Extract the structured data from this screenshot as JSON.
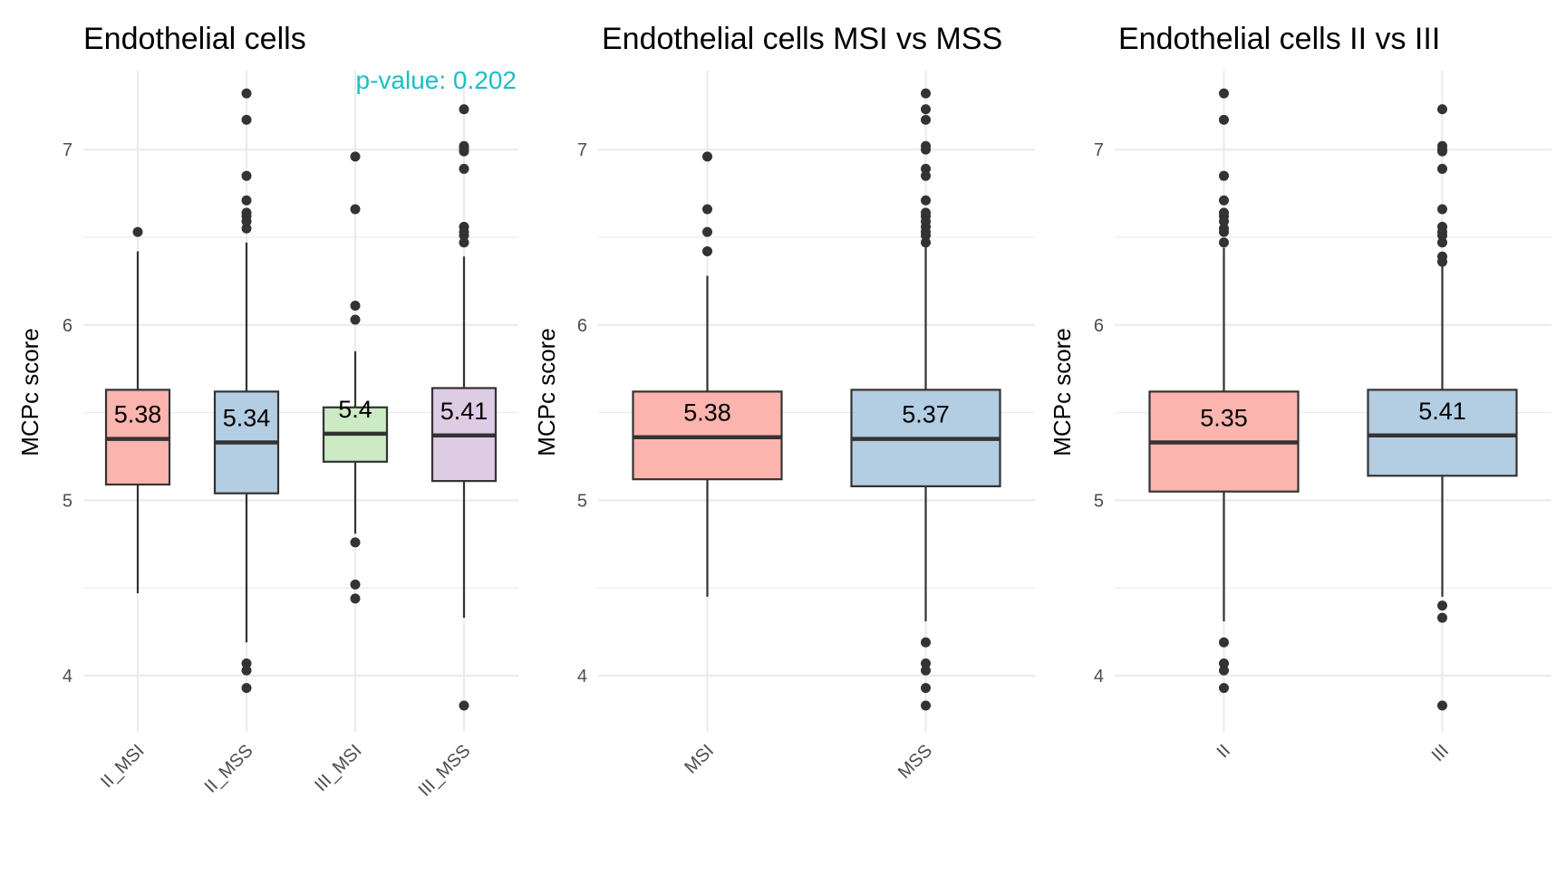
{
  "chart_data": [
    {
      "type": "box",
      "title": "Endothelial cells",
      "ylabel": "MCPc score",
      "ylim": [
        3.68,
        7.45
      ],
      "yticks": [
        4,
        5,
        6,
        7
      ],
      "grid": true,
      "annotation": "p-value: 0.202",
      "annotation_color": "#1CBEC6",
      "categories": [
        "II_MSI",
        "II_MSS",
        "III_MSI",
        "III_MSS"
      ],
      "boxes": [
        {
          "category": "II_MSI",
          "q1": 5.09,
          "median": 5.35,
          "q3": 5.63,
          "whisker_low": 4.47,
          "whisker_high": 6.42,
          "label": "5.38",
          "color": "#FBB4AE",
          "outliers": [
            6.53
          ]
        },
        {
          "category": "II_MSS",
          "q1": 5.04,
          "median": 5.33,
          "q3": 5.62,
          "whisker_low": 4.19,
          "whisker_high": 6.47,
          "label": "5.34",
          "color": "#B3CDE3",
          "outliers": [
            7.32,
            7.17,
            6.85,
            6.71,
            6.64,
            6.62,
            6.59,
            6.55,
            4.07,
            4.03,
            3.93
          ]
        },
        {
          "category": "III_MSI",
          "q1": 5.22,
          "median": 5.38,
          "q3": 5.53,
          "whisker_low": 4.81,
          "whisker_high": 5.85,
          "label": "5.4",
          "color": "#CCEBC5",
          "outliers": [
            6.96,
            6.66,
            6.11,
            6.03,
            4.76,
            4.52,
            4.44
          ]
        },
        {
          "category": "III_MSS",
          "q1": 5.11,
          "median": 5.37,
          "q3": 5.64,
          "whisker_low": 4.33,
          "whisker_high": 6.39,
          "label": "5.41",
          "color": "#DECBE4",
          "outliers": [
            7.23,
            7.02,
            7.01,
            6.99,
            6.89,
            6.56,
            6.53,
            6.51,
            6.47,
            3.83
          ]
        }
      ]
    },
    {
      "type": "box",
      "title": "Endothelial cells MSI vs MSS",
      "ylabel": "MCPc score",
      "ylim": [
        3.68,
        7.45
      ],
      "yticks": [
        4,
        5,
        6,
        7
      ],
      "grid": true,
      "categories": [
        "MSI",
        "MSS"
      ],
      "boxes": [
        {
          "category": "MSI",
          "q1": 5.12,
          "median": 5.36,
          "q3": 5.62,
          "whisker_low": 4.45,
          "whisker_high": 6.28,
          "label": "5.38",
          "color": "#FBB4AE",
          "outliers": [
            6.96,
            6.66,
            6.53,
            6.42
          ]
        },
        {
          "category": "MSS",
          "q1": 5.08,
          "median": 5.35,
          "q3": 5.63,
          "whisker_low": 4.31,
          "whisker_high": 6.45,
          "label": "5.37",
          "color": "#B3CDE3",
          "outliers": [
            7.32,
            7.23,
            7.17,
            7.02,
            7.0,
            6.89,
            6.85,
            6.71,
            6.64,
            6.62,
            6.59,
            6.56,
            6.53,
            6.51,
            6.47,
            4.19,
            4.07,
            4.03,
            3.93,
            3.83
          ]
        }
      ]
    },
    {
      "type": "box",
      "title": "Endothelial cells II vs III",
      "ylabel": "MCPc score",
      "ylim": [
        3.68,
        7.45
      ],
      "yticks": [
        4,
        5,
        6,
        7
      ],
      "grid": true,
      "categories": [
        "II",
        "III"
      ],
      "boxes": [
        {
          "category": "II",
          "q1": 5.05,
          "median": 5.33,
          "q3": 5.62,
          "whisker_low": 4.31,
          "whisker_high": 6.44,
          "label": "5.35",
          "color": "#FBB4AE",
          "outliers": [
            7.32,
            7.17,
            6.85,
            6.71,
            6.64,
            6.62,
            6.59,
            6.55,
            6.53,
            6.47,
            4.19,
            4.07,
            4.03,
            3.93
          ]
        },
        {
          "category": "III",
          "q1": 5.14,
          "median": 5.37,
          "q3": 5.63,
          "whisker_low": 4.45,
          "whisker_high": 6.39,
          "label": "5.41",
          "color": "#B3CDE3",
          "outliers": [
            7.23,
            7.02,
            7.0,
            6.99,
            6.89,
            6.66,
            6.56,
            6.53,
            6.51,
            6.47,
            6.39,
            6.36,
            4.4,
            4.33,
            3.83
          ]
        }
      ]
    }
  ]
}
